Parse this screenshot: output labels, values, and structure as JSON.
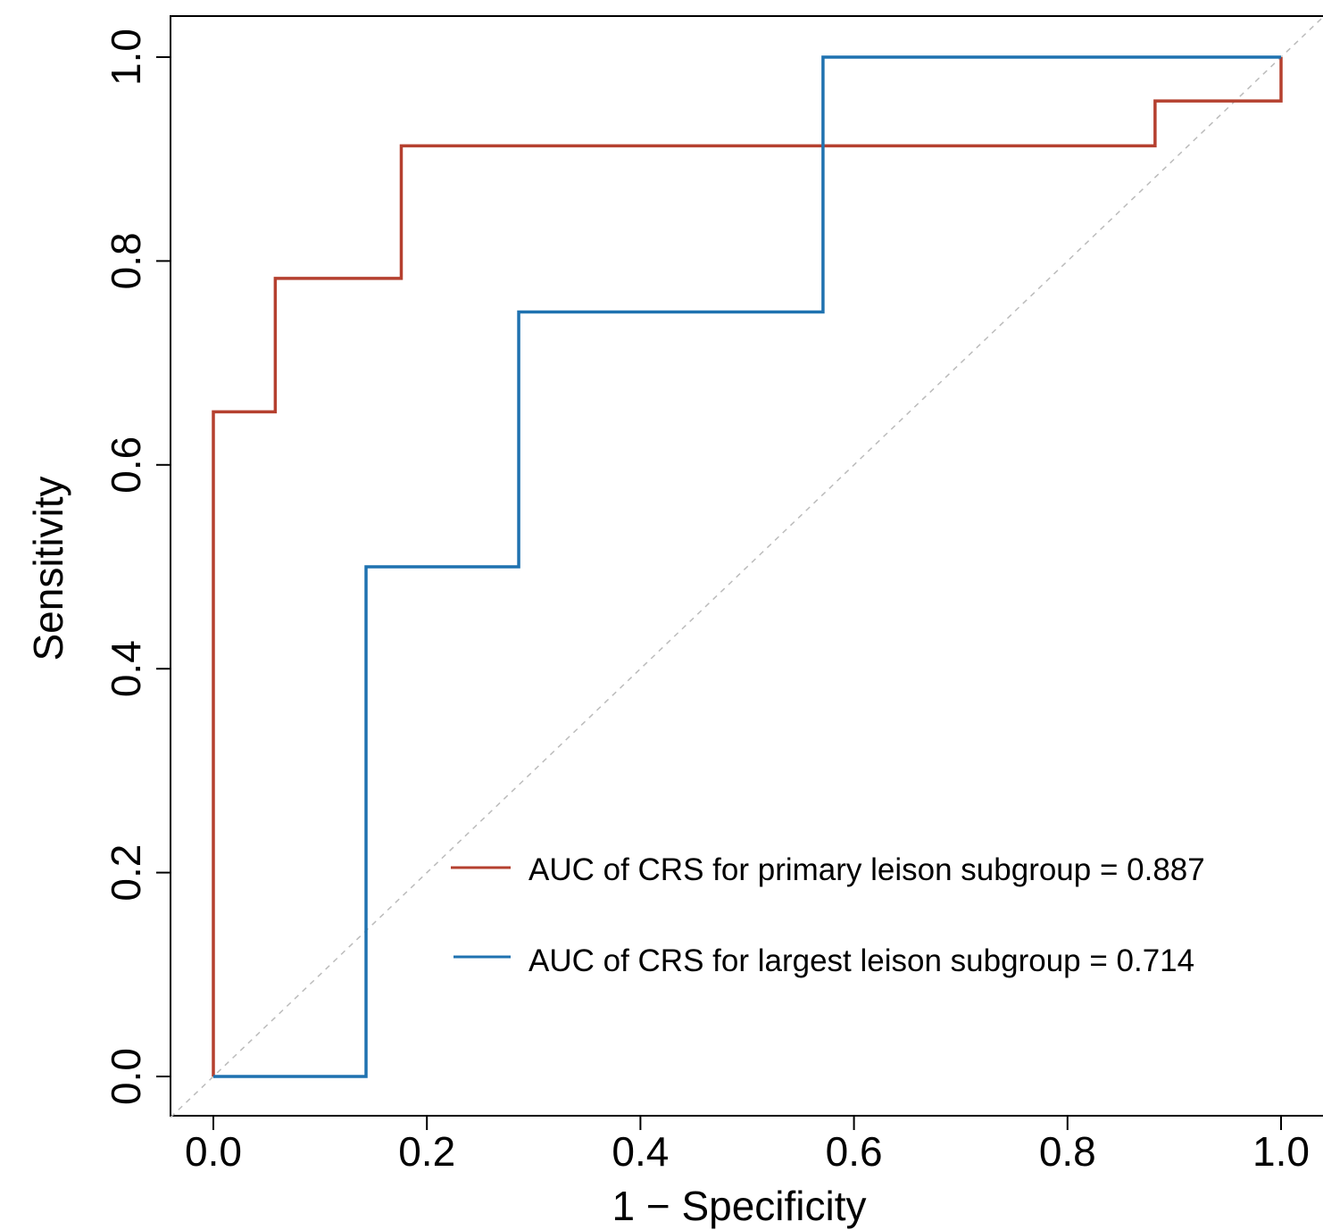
{
  "chart_data": {
    "type": "line",
    "xlabel": "1 − Specificity",
    "ylabel": "Sensitivity",
    "xlim": [
      -0.04,
      1.04
    ],
    "ylim": [
      -0.04,
      1.04
    ],
    "x_ticks": [
      0.0,
      0.2,
      0.4,
      0.6,
      0.8,
      1.0
    ],
    "x_tick_labels": [
      "0.0",
      "0.2",
      "0.4",
      "0.6",
      "0.8",
      "1.0"
    ],
    "y_ticks": [
      0.0,
      0.2,
      0.4,
      0.6,
      0.8,
      1.0
    ],
    "y_tick_labels": [
      "0.0",
      "0.2",
      "0.4",
      "0.6",
      "0.8",
      "1.0"
    ],
    "grid": false,
    "reference_line": {
      "x": [
        -0.04,
        1.04
      ],
      "y": [
        -0.04,
        1.04
      ],
      "style": "dashed",
      "color": "#bbbbbb"
    },
    "legend_position": "bottom-right",
    "series": [
      {
        "name": "AUC of CRS for primary leison subgroup = 0.887",
        "color": "#b5402f",
        "x": [
          0.0,
          0.0,
          0.058,
          0.058,
          0.176,
          0.176,
          0.882,
          0.882,
          1.0,
          1.0
        ],
        "y": [
          0.0,
          0.652,
          0.652,
          0.783,
          0.783,
          0.913,
          0.913,
          0.957,
          0.957,
          1.0
        ]
      },
      {
        "name": "AUC of CRS for largest leison subgroup = 0.714",
        "color": "#1f72b0",
        "x": [
          0.0,
          0.143,
          0.143,
          0.286,
          0.286,
          0.571,
          0.571,
          1.0
        ],
        "y": [
          0.0,
          0.0,
          0.5,
          0.5,
          0.75,
          0.75,
          1.0,
          1.0
        ]
      }
    ]
  }
}
